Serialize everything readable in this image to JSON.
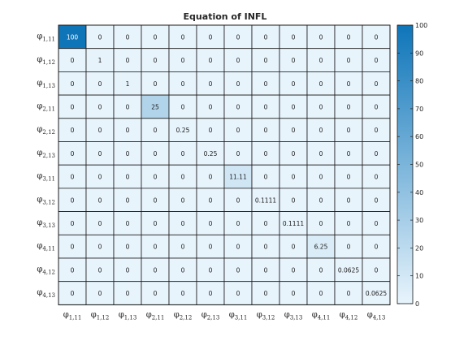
{
  "chart_data": {
    "type": "heatmap",
    "title": "Equation of INFL",
    "row_labels": [
      {
        "base": "φ",
        "sub": "1,11"
      },
      {
        "base": "φ",
        "sub": "1,12"
      },
      {
        "base": "φ",
        "sub": "1,13"
      },
      {
        "base": "φ",
        "sub": "2,11"
      },
      {
        "base": "φ",
        "sub": "2,12"
      },
      {
        "base": "φ",
        "sub": "2,13"
      },
      {
        "base": "φ",
        "sub": "3,11"
      },
      {
        "base": "φ",
        "sub": "3,12"
      },
      {
        "base": "φ",
        "sub": "3,13"
      },
      {
        "base": "φ",
        "sub": "4,11"
      },
      {
        "base": "φ",
        "sub": "4,12"
      },
      {
        "base": "φ",
        "sub": "4,13"
      }
    ],
    "col_labels": [
      {
        "base": "φ",
        "sub": "1,11"
      },
      {
        "base": "φ",
        "sub": "1,12"
      },
      {
        "base": "φ",
        "sub": "1,13"
      },
      {
        "base": "φ",
        "sub": "2,11"
      },
      {
        "base": "φ",
        "sub": "2,12"
      },
      {
        "base": "φ",
        "sub": "2,13"
      },
      {
        "base": "φ",
        "sub": "3,11"
      },
      {
        "base": "φ",
        "sub": "3,12"
      },
      {
        "base": "φ",
        "sub": "3,13"
      },
      {
        "base": "φ",
        "sub": "4,11"
      },
      {
        "base": "φ",
        "sub": "4,12"
      },
      {
        "base": "φ",
        "sub": "4,13"
      }
    ],
    "values": [
      [
        100,
        0,
        0,
        0,
        0,
        0,
        0,
        0,
        0,
        0,
        0,
        0
      ],
      [
        0,
        1,
        0,
        0,
        0,
        0,
        0,
        0,
        0,
        0,
        0,
        0
      ],
      [
        0,
        0,
        1,
        0,
        0,
        0,
        0,
        0,
        0,
        0,
        0,
        0
      ],
      [
        0,
        0,
        0,
        25,
        0,
        0,
        0,
        0,
        0,
        0,
        0,
        0
      ],
      [
        0,
        0,
        0,
        0,
        0.25,
        0,
        0,
        0,
        0,
        0,
        0,
        0
      ],
      [
        0,
        0,
        0,
        0,
        0,
        0.25,
        0,
        0,
        0,
        0,
        0,
        0
      ],
      [
        0,
        0,
        0,
        0,
        0,
        0,
        11.11,
        0,
        0,
        0,
        0,
        0
      ],
      [
        0,
        0,
        0,
        0,
        0,
        0,
        0,
        0.1111,
        0,
        0,
        0,
        0
      ],
      [
        0,
        0,
        0,
        0,
        0,
        0,
        0,
        0,
        0.1111,
        0,
        0,
        0
      ],
      [
        0,
        0,
        0,
        0,
        0,
        0,
        0,
        0,
        0,
        6.25,
        0,
        0
      ],
      [
        0,
        0,
        0,
        0,
        0,
        0,
        0,
        0,
        0,
        0,
        0.0625,
        0
      ],
      [
        0,
        0,
        0,
        0,
        0,
        0,
        0,
        0,
        0,
        0,
        0,
        0.0625
      ]
    ],
    "colorbar": {
      "range": [
        0,
        100
      ],
      "ticks": [
        0,
        10,
        20,
        30,
        40,
        50,
        60,
        70,
        80,
        90,
        100
      ],
      "colors": [
        "#e8f4fc",
        "#0e75b9"
      ]
    },
    "grid": true
  }
}
